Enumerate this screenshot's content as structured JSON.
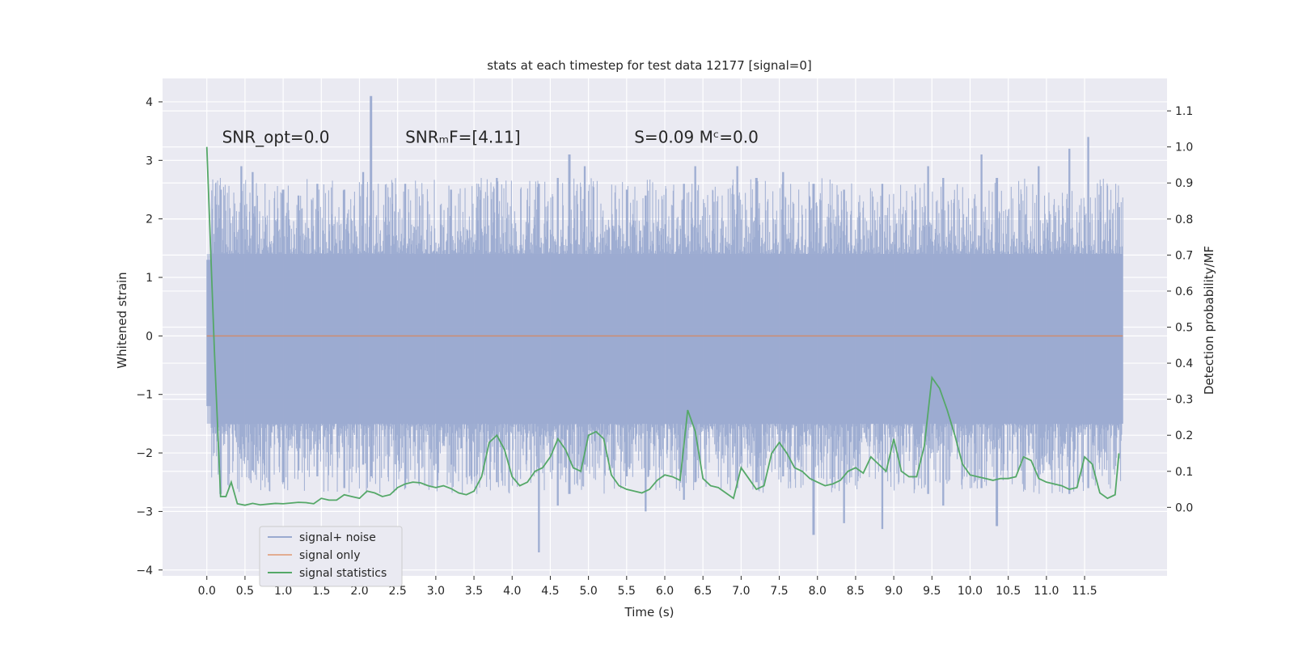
{
  "chart_data": {
    "type": "line",
    "title": "stats at each timestep for test data 12177 [signal=0]",
    "xlabel": "Time (s)",
    "ylabel": "Whitened strain",
    "y2label": "Detection probability/MF",
    "xlim": [
      -0.58,
      12.58
    ],
    "ylim": [
      -4.1,
      4.4
    ],
    "y2lim": [
      -0.19,
      1.19
    ],
    "xticks": [
      0.0,
      0.5,
      1.0,
      1.5,
      2.0,
      2.5,
      3.0,
      3.5,
      4.0,
      4.5,
      5.0,
      5.5,
      6.0,
      6.5,
      7.0,
      7.5,
      8.0,
      8.5,
      9.0,
      9.5,
      10.0,
      10.5,
      11.0,
      11.5
    ],
    "xtick_labels": [
      "0.0",
      "0.5",
      "1.0",
      "1.5",
      "2.0",
      "2.5",
      "3.0",
      "3.5",
      "4.0",
      "4.5",
      "5.0",
      "5.5",
      "6.0",
      "6.5",
      "7.0",
      "7.5",
      "8.0",
      "8.5",
      "9.0",
      "9.5",
      "10.0",
      "10.5",
      "11.0",
      "11.5"
    ],
    "yticks": [
      -4,
      -3,
      -2,
      -1,
      0,
      1,
      2,
      3,
      4
    ],
    "ytick_labels": [
      "−4",
      "−3",
      "−2",
      "−1",
      "0",
      "1",
      "2",
      "3",
      "4"
    ],
    "y2ticks": [
      0.0,
      0.1,
      0.2,
      0.3,
      0.4,
      0.5,
      0.6,
      0.7,
      0.8,
      0.9,
      1.0,
      1.1
    ],
    "y2tick_labels": [
      "0.0",
      "0.1",
      "0.2",
      "0.3",
      "0.4",
      "0.5",
      "0.6",
      "0.7",
      "0.8",
      "0.9",
      "1.0",
      "1.1"
    ],
    "grid": true,
    "legend_position": "lower-left",
    "annotations": [
      {
        "text": "SNR_opt=0.0",
        "x": 0.2,
        "y": 3.3
      },
      {
        "text": "SNRₘF=[4.11]",
        "x": 2.6,
        "y": 3.3
      },
      {
        "text": "S=0.09   Mᶜ=0.0",
        "x": 5.6,
        "y": 3.3
      }
    ],
    "series": [
      {
        "name": "signal+ noise",
        "axis": "left",
        "color": "#9aaad0",
        "time_range": [
          0.0,
          12.0
        ],
        "envelope_peaks": [
          {
            "t": 0.02,
            "hi": 1.8,
            "lo": -1.8
          },
          {
            "t": 0.18,
            "hi": 2.5,
            "lo": -2.7
          },
          {
            "t": 0.45,
            "hi": 2.9,
            "lo": -2.1
          },
          {
            "t": 0.6,
            "hi": 2.8,
            "lo": -2.3
          },
          {
            "t": 1.0,
            "hi": 2.5,
            "lo": -2.5
          },
          {
            "t": 1.2,
            "hi": 2.4,
            "lo": -2.3
          },
          {
            "t": 1.45,
            "hi": 2.6,
            "lo": -2.4
          },
          {
            "t": 1.8,
            "hi": 2.5,
            "lo": -2.6
          },
          {
            "t": 2.05,
            "hi": 2.8,
            "lo": -2.2
          },
          {
            "t": 2.15,
            "hi": 4.1,
            "lo": -2.4
          },
          {
            "t": 2.6,
            "hi": 2.6,
            "lo": -2.6
          },
          {
            "t": 3.2,
            "hi": 2.5,
            "lo": -2.2
          },
          {
            "t": 3.8,
            "hi": 2.7,
            "lo": -2.5
          },
          {
            "t": 4.35,
            "hi": 2.6,
            "lo": -3.7
          },
          {
            "t": 4.6,
            "hi": 2.7,
            "lo": -2.9
          },
          {
            "t": 4.75,
            "hi": 3.1,
            "lo": -2.7
          },
          {
            "t": 4.95,
            "hi": 2.9,
            "lo": -2.2
          },
          {
            "t": 5.5,
            "hi": 2.5,
            "lo": -2.4
          },
          {
            "t": 5.75,
            "hi": 2.4,
            "lo": -3.0
          },
          {
            "t": 6.25,
            "hi": 2.6,
            "lo": -2.8
          },
          {
            "t": 6.4,
            "hi": 2.9,
            "lo": -2.5
          },
          {
            "t": 6.95,
            "hi": 2.9,
            "lo": -2.6
          },
          {
            "t": 7.2,
            "hi": 2.7,
            "lo": -2.5
          },
          {
            "t": 7.55,
            "hi": 2.8,
            "lo": -2.4
          },
          {
            "t": 7.95,
            "hi": 2.6,
            "lo": -3.4
          },
          {
            "t": 8.35,
            "hi": 2.5,
            "lo": -3.2
          },
          {
            "t": 8.85,
            "hi": 2.6,
            "lo": -3.3
          },
          {
            "t": 9.45,
            "hi": 2.9,
            "lo": -2.7
          },
          {
            "t": 9.65,
            "hi": 2.7,
            "lo": -2.9
          },
          {
            "t": 10.15,
            "hi": 3.1,
            "lo": -2.6
          },
          {
            "t": 10.35,
            "hi": 2.7,
            "lo": -3.25
          },
          {
            "t": 10.9,
            "hi": 2.9,
            "lo": -2.4
          },
          {
            "t": 11.3,
            "hi": 3.2,
            "lo": -2.7
          },
          {
            "t": 11.55,
            "hi": 3.4,
            "lo": -2.6
          },
          {
            "t": 11.95,
            "hi": 2.2,
            "lo": -1.6
          }
        ]
      },
      {
        "name": "signal only",
        "axis": "left",
        "color": "#dd8452",
        "x": [
          0.0,
          12.0
        ],
        "y": [
          0.0,
          0.0
        ]
      },
      {
        "name": "signal statistics",
        "axis": "right",
        "color": "#55a868",
        "x": [
          0.0,
          0.1,
          0.18,
          0.25,
          0.32,
          0.4,
          0.5,
          0.6,
          0.7,
          0.8,
          0.9,
          1.0,
          1.1,
          1.2,
          1.3,
          1.4,
          1.5,
          1.6,
          1.7,
          1.8,
          1.9,
          2.0,
          2.1,
          2.2,
          2.3,
          2.4,
          2.5,
          2.6,
          2.7,
          2.8,
          2.9,
          3.0,
          3.1,
          3.2,
          3.3,
          3.4,
          3.5,
          3.6,
          3.7,
          3.8,
          3.9,
          4.0,
          4.1,
          4.2,
          4.3,
          4.4,
          4.5,
          4.6,
          4.7,
          4.8,
          4.9,
          5.0,
          5.1,
          5.2,
          5.3,
          5.4,
          5.5,
          5.6,
          5.7,
          5.8,
          5.9,
          6.0,
          6.1,
          6.2,
          6.3,
          6.4,
          6.5,
          6.6,
          6.7,
          6.8,
          6.9,
          7.0,
          7.1,
          7.2,
          7.3,
          7.4,
          7.5,
          7.6,
          7.7,
          7.8,
          7.9,
          8.0,
          8.1,
          8.2,
          8.3,
          8.4,
          8.5,
          8.6,
          8.7,
          8.8,
          8.9,
          9.0,
          9.1,
          9.2,
          9.3,
          9.4,
          9.5,
          9.6,
          9.7,
          9.8,
          9.9,
          10.0,
          10.1,
          10.2,
          10.3,
          10.4,
          10.5,
          10.6,
          10.7,
          10.8,
          10.9,
          11.0,
          11.1,
          11.2,
          11.3,
          11.4,
          11.5,
          11.6,
          11.7,
          11.8,
          11.9,
          11.95
        ],
        "y": [
          1.0,
          0.43,
          0.03,
          0.03,
          0.07,
          0.01,
          0.006,
          0.011,
          0.007,
          0.009,
          0.011,
          0.01,
          0.012,
          0.014,
          0.013,
          0.01,
          0.025,
          0.02,
          0.02,
          0.035,
          0.03,
          0.025,
          0.045,
          0.04,
          0.03,
          0.035,
          0.055,
          0.065,
          0.07,
          0.068,
          0.06,
          0.055,
          0.06,
          0.052,
          0.04,
          0.035,
          0.045,
          0.085,
          0.18,
          0.2,
          0.16,
          0.085,
          0.06,
          0.07,
          0.1,
          0.11,
          0.14,
          0.19,
          0.16,
          0.11,
          0.1,
          0.2,
          0.21,
          0.19,
          0.09,
          0.06,
          0.05,
          0.045,
          0.04,
          0.05,
          0.075,
          0.09,
          0.085,
          0.075,
          0.27,
          0.21,
          0.08,
          0.06,
          0.055,
          0.04,
          0.025,
          0.11,
          0.08,
          0.05,
          0.06,
          0.15,
          0.18,
          0.15,
          0.11,
          0.1,
          0.08,
          0.07,
          0.06,
          0.065,
          0.075,
          0.1,
          0.11,
          0.095,
          0.14,
          0.12,
          0.1,
          0.19,
          0.1,
          0.085,
          0.085,
          0.17,
          0.36,
          0.33,
          0.27,
          0.2,
          0.12,
          0.09,
          0.085,
          0.08,
          0.075,
          0.08,
          0.08,
          0.085,
          0.14,
          0.13,
          0.08,
          0.07,
          0.065,
          0.06,
          0.05,
          0.055,
          0.14,
          0.12,
          0.04,
          0.025,
          0.035,
          0.15
        ]
      }
    ]
  }
}
